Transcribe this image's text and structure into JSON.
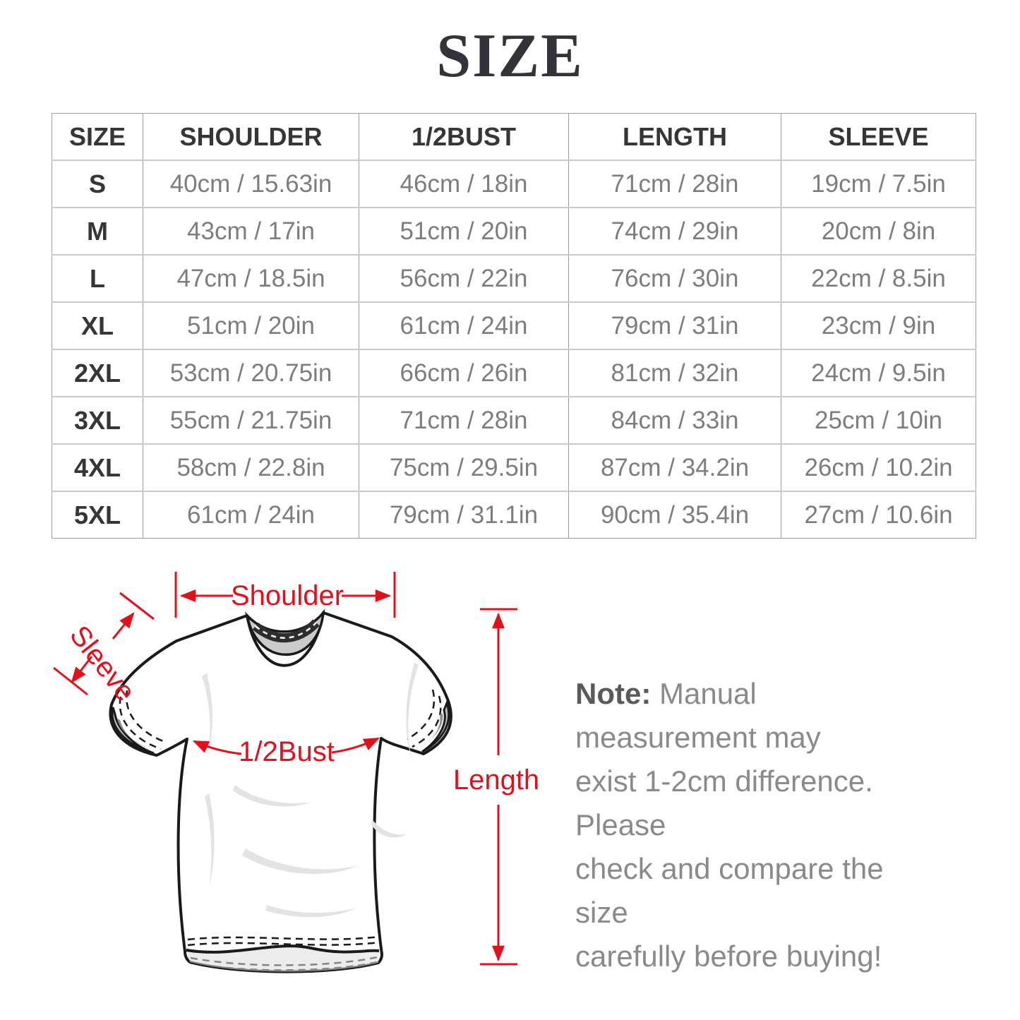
{
  "page": {
    "title": "SIZE"
  },
  "size_table": {
    "headers": [
      "SIZE",
      "SHOULDER",
      "1/2BUST",
      "LENGTH",
      "SLEEVE"
    ],
    "rows": [
      [
        "S",
        "40cm / 15.63in",
        "46cm / 18in",
        "71cm / 28in",
        "19cm / 7.5in"
      ],
      [
        "M",
        "43cm / 17in",
        "51cm / 20in",
        "74cm / 29in",
        "20cm / 8in"
      ],
      [
        "L",
        "47cm / 18.5in",
        "56cm / 22in",
        "76cm / 30in",
        "22cm / 8.5in"
      ],
      [
        "XL",
        "51cm / 20in",
        "61cm / 24in",
        "79cm / 31in",
        "23cm / 9in"
      ],
      [
        "2XL",
        "53cm / 20.75in",
        "66cm / 26in",
        "81cm / 32in",
        "24cm / 9.5in"
      ],
      [
        "3XL",
        "55cm / 21.75in",
        "71cm / 28in",
        "84cm / 33in",
        "25cm / 10in"
      ],
      [
        "4XL",
        "58cm / 22.8in",
        "75cm / 29.5in",
        "87cm / 34.2in",
        "26cm / 10.2in"
      ],
      [
        "5XL",
        "61cm / 24in",
        "79cm / 31.1in",
        "90cm / 35.4in",
        "27cm / 10.6in"
      ]
    ]
  },
  "diagram": {
    "labels": {
      "shoulder": "Shoulder",
      "sleeve": "Sleeve",
      "half_bust": "1/2Bust",
      "length": "Length"
    },
    "colors": {
      "annotation_red": "#e2101c",
      "shirt_outline": "#1a1a1a",
      "collar_gray": "#cbcbcb"
    }
  },
  "note": {
    "prefix": "Note:",
    "line1_rest": " Manual measurement may",
    "line2": "exist 1-2cm difference. Please",
    "line3": "check and compare the size",
    "line4": "carefully before buying!"
  },
  "colors": {
    "table_border": "#9e9e9e",
    "heading_text": "#363636",
    "value_text": "#7d7d7d",
    "note_text": "#8a8a8a"
  }
}
